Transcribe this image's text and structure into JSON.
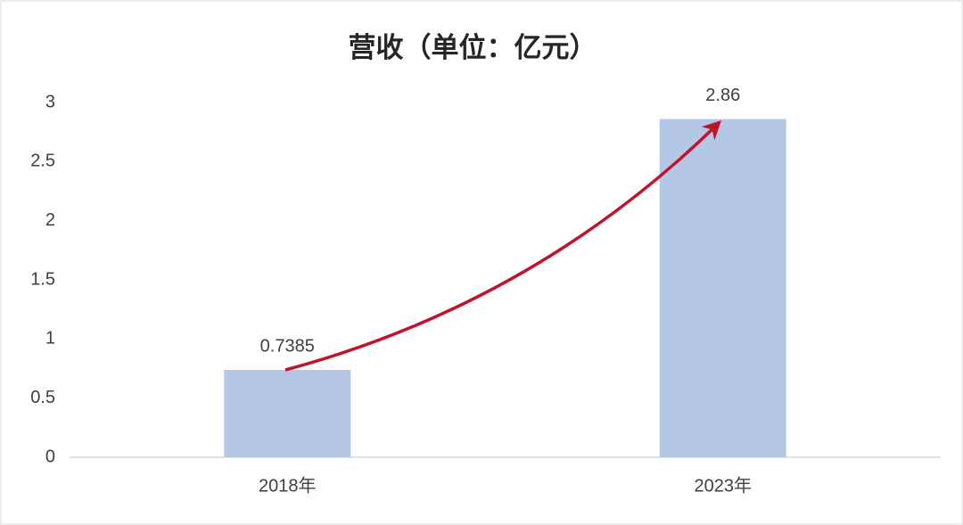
{
  "chart_data": {
    "type": "bar",
    "title": "营收（单位：亿元）",
    "categories": [
      "2018年",
      "2023年"
    ],
    "values": [
      0.7385,
      2.86
    ],
    "color": "#b4c7e7",
    "ylim": [
      0,
      3
    ],
    "yticks": [
      0,
      0.5,
      1,
      1.5,
      2,
      2.5,
      3
    ],
    "grid": false
  }
}
